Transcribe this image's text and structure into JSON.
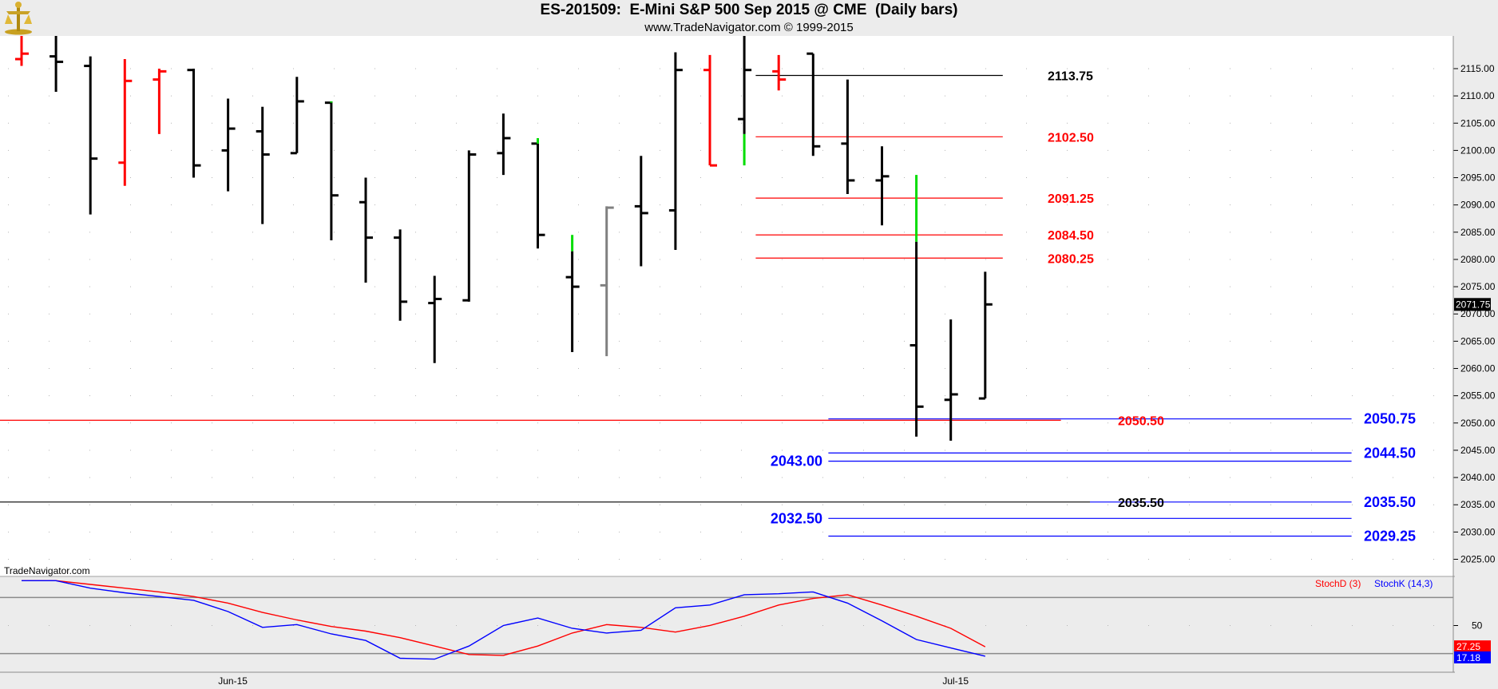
{
  "header": {
    "title": "ES-201509:  E-Mini S&P 500 Sep 2015 @ CME  (Daily bars)",
    "subtitle": "www.TradeNavigator.com © 1999-2015"
  },
  "colors": {
    "background": "#ffffff",
    "frame": "#ececec",
    "up_bar": "#000000",
    "down_bar": "#ff0000",
    "gap_bar": "#00dd00",
    "neutral_bar": "#808080",
    "level_red": "#ff0000",
    "level_blue": "#0000ff",
    "level_black": "#000000",
    "stoch_d": "#ff0000",
    "stoch_k": "#0000ff"
  },
  "chart_data": [
    {
      "type": "ohlc",
      "title": "ES-201509:  E-Mini S&P 500 Sep 2015 @ CME  (Daily bars)",
      "ylim": [
        2022,
        2121
      ],
      "ytick_labels": [
        "2025.00",
        "2030.00",
        "2035.00",
        "2040.00",
        "2045.00",
        "2050.00",
        "2055.00",
        "2060.00",
        "2065.00",
        "2070.00",
        "2075.00",
        "2080.00",
        "2085.00",
        "2090.00",
        "2095.00",
        "2100.00",
        "2105.00",
        "2110.00",
        "2115.00"
      ],
      "xtick_labels": [
        "Jun-15",
        "Jul-15"
      ],
      "last_price": "2071.75",
      "bars": [
        {
          "o": 2116.75,
          "h": 2124,
          "l": 2115.5,
          "c": 2117.75,
          "color": "red"
        },
        {
          "o": 2117.25,
          "h": 2123,
          "l": 2110.75,
          "c": 2116.25,
          "color": "black"
        },
        {
          "o": 2115.5,
          "h": 2117.25,
          "l": 2088.25,
          "c": 2098.5,
          "color": "black"
        },
        {
          "o": 2097.75,
          "h": 2116.75,
          "l": 2093.5,
          "c": 2112.75,
          "color": "red"
        },
        {
          "o": 2113.0,
          "h": 2115.0,
          "l": 2103.0,
          "c": 2114.5,
          "color": "red"
        },
        {
          "o": 2114.75,
          "h": 2115.0,
          "l": 2095.0,
          "c": 2097.25,
          "color": "black"
        },
        {
          "o": 2100.0,
          "h": 2109.5,
          "l": 2092.5,
          "c": 2104.0,
          "color": "black"
        },
        {
          "o": 2103.5,
          "h": 2108.0,
          "l": 2086.5,
          "c": 2099.25,
          "color": "black"
        },
        {
          "o": 2099.5,
          "h": 2113.5,
          "l": 2099.5,
          "c": 2109.0,
          "color": "black"
        },
        {
          "o": 2108.75,
          "h": 2109.0,
          "l": 2083.5,
          "c": 2091.75,
          "color": "black",
          "gap": {
            "from": 2108.75,
            "to": 2109.0
          }
        },
        {
          "o": 2090.5,
          "h": 2095.0,
          "l": 2075.75,
          "c": 2084.0,
          "color": "black"
        },
        {
          "o": 2084.0,
          "h": 2085.5,
          "l": 2068.75,
          "c": 2072.25,
          "color": "black"
        },
        {
          "o": 2072.0,
          "h": 2077.0,
          "l": 2061.0,
          "c": 2072.75,
          "color": "black"
        },
        {
          "o": 2072.5,
          "h": 2100.0,
          "l": 2072.25,
          "c": 2099.25,
          "color": "black"
        },
        {
          "o": 2099.5,
          "h": 2106.75,
          "l": 2095.5,
          "c": 2102.25,
          "color": "black"
        },
        {
          "o": 2101.25,
          "h": 2101.25,
          "l": 2082.0,
          "c": 2084.5,
          "color": "black",
          "gap": {
            "from": 2101.25,
            "to": 2102.25
          }
        },
        {
          "o": 2076.75,
          "h": 2081.5,
          "l": 2063.0,
          "c": 2075.0,
          "color": "black",
          "gap": {
            "from": 2081.5,
            "to": 2084.5
          }
        },
        {
          "o": 2075.25,
          "h": 2089.75,
          "l": 2062.25,
          "c": 2089.5,
          "color": "gray"
        },
        {
          "o": 2089.75,
          "h": 2099.0,
          "l": 2078.75,
          "c": 2088.5,
          "color": "black"
        },
        {
          "o": 2089.0,
          "h": 2118.0,
          "l": 2081.75,
          "c": 2114.75,
          "color": "black"
        },
        {
          "o": 2114.75,
          "h": 2117.5,
          "l": 2097.25,
          "c": 2097.25,
          "color": "red"
        },
        {
          "o": 2105.75,
          "h": 2124.0,
          "l": 2103.0,
          "c": 2114.75,
          "color": "black",
          "gap": {
            "from": 2097.25,
            "to": 2103.0
          }
        },
        {
          "o": 2114.5,
          "h": 2117.5,
          "l": 2111.0,
          "c": 2113.0,
          "color": "red"
        },
        {
          "o": 2117.75,
          "h": 2117.75,
          "l": 2099.0,
          "c": 2100.75,
          "color": "black"
        },
        {
          "o": 2101.25,
          "h": 2113.0,
          "l": 2092.0,
          "c": 2094.5,
          "color": "black"
        },
        {
          "o": 2094.5,
          "h": 2100.75,
          "l": 2086.25,
          "c": 2095.25,
          "color": "black"
        },
        {
          "o": 2064.25,
          "h": 2083.25,
          "l": 2047.5,
          "c": 2053.0,
          "color": "black",
          "gap": {
            "from": 2083.25,
            "to": 2095.5
          }
        },
        {
          "o": 2054.25,
          "h": 2069.0,
          "l": 2046.75,
          "c": 2055.25,
          "color": "black"
        },
        {
          "o": 2054.5,
          "h": 2077.75,
          "l": 2054.5,
          "c": 2071.75,
          "color": "black"
        }
      ],
      "levels": [
        {
          "label": "2113.75",
          "value": 2113.75,
          "color": "black",
          "x0": 0.52,
          "x1": 0.69
        },
        {
          "label": "2102.50",
          "value": 2102.5,
          "color": "red",
          "x0": 0.52,
          "x1": 0.69
        },
        {
          "label": "2091.25",
          "value": 2091.25,
          "color": "red",
          "x0": 0.52,
          "x1": 0.69
        },
        {
          "label": "2084.50",
          "value": 2084.5,
          "color": "red",
          "x0": 0.52,
          "x1": 0.69
        },
        {
          "label": "2080.25",
          "value": 2080.25,
          "color": "red",
          "x0": 0.52,
          "x1": 0.69
        },
        {
          "label": "2050.50",
          "value": 2050.5,
          "color": "red",
          "x0": 0.0,
          "x1": 0.73
        },
        {
          "label": "2050.75",
          "value": 2050.75,
          "color": "blue",
          "x0": 0.57,
          "x1": 0.93
        },
        {
          "label": "2044.50",
          "value": 2044.5,
          "color": "blue",
          "x0": 0.57,
          "x1": 0.93
        },
        {
          "label": "2043.00",
          "value": 2043.0,
          "color": "blue",
          "x0": 0.57,
          "x1": 0.93
        },
        {
          "label": "2035.50",
          "value": 2035.5,
          "color": "black",
          "x0": 0.0,
          "x1": 0.75
        },
        {
          "label": "2035.50",
          "value": 2035.5,
          "color": "blue",
          "x0": 0.75,
          "x1": 0.93
        },
        {
          "label": "2032.50",
          "value": 2032.5,
          "color": "blue",
          "x0": 0.57,
          "x1": 0.93
        },
        {
          "label": "2029.25",
          "value": 2029.25,
          "color": "blue",
          "x0": 0.57,
          "x1": 0.93
        }
      ]
    },
    {
      "type": "line",
      "source_label": "TradeNavigator.com",
      "ylim": [
        0,
        100
      ],
      "ytick_labels": [
        "50"
      ],
      "hlines": [
        80,
        20
      ],
      "legend": [
        {
          "name": "StochD (3)",
          "color": "#ff0000"
        },
        {
          "name": "StochK (14,3)",
          "color": "#0000ff"
        }
      ],
      "last_values": {
        "d": "27.25",
        "k": "17.18"
      },
      "series": [
        {
          "name": "StochD (3)",
          "values": [
            98,
            98,
            94,
            90,
            86,
            81,
            74,
            64,
            56,
            49,
            44,
            37,
            28,
            19,
            18,
            28,
            42,
            51,
            48,
            43,
            50,
            60,
            72,
            79,
            83,
            72,
            60,
            47,
            27.25
          ]
        },
        {
          "name": "StochK (14,3)",
          "values": [
            98,
            98,
            90,
            85,
            81,
            77,
            65,
            48,
            51,
            41,
            34,
            15,
            14,
            28,
            50,
            58,
            47,
            42,
            45,
            69,
            72,
            83,
            84,
            86,
            74,
            55,
            35,
            26,
            17.18
          ]
        }
      ]
    }
  ]
}
